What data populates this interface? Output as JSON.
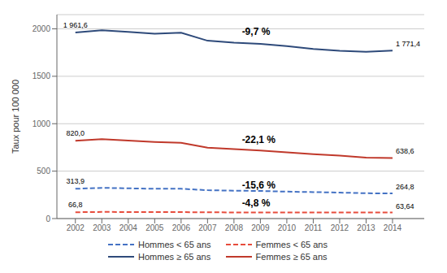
{
  "chart_data": {
    "type": "line",
    "x": [
      2002,
      2003,
      2004,
      2005,
      2006,
      2007,
      2008,
      2009,
      2010,
      2011,
      2012,
      2013,
      2014
    ],
    "xlim": [
      2001.3,
      2015.2
    ],
    "xticks": [
      2002,
      2003,
      2004,
      2005,
      2006,
      2007,
      2008,
      2009,
      2010,
      2011,
      2012,
      2013,
      2014
    ],
    "ylabel": "Taux pour 100 000",
    "ylim": [
      0,
      2150
    ],
    "yticks": [
      0,
      500,
      1000,
      1500,
      2000
    ],
    "grid": true,
    "legend": "bottom",
    "series": [
      {
        "name": "Hommes ≥ 65 ans",
        "color": "#2E4A7A",
        "line_style": "solid",
        "values": [
          1961.6,
          1985,
          1968,
          1948,
          1960,
          1875,
          1855,
          1842,
          1818,
          1788,
          1768,
          1758,
          1771.4
        ],
        "value_labels": [
          "1 961,6",
          null,
          null,
          null,
          null,
          null,
          null,
          null,
          null,
          null,
          null,
          null,
          "1 771,4"
        ]
      },
      {
        "name": "Femmes ≥ 65 ans",
        "color": "#C0392B",
        "line_style": "solid",
        "values": [
          820.0,
          838,
          822,
          808,
          798,
          748,
          732,
          718,
          698,
          678,
          663,
          643,
          638.6
        ],
        "value_labels": [
          "820,0",
          null,
          null,
          null,
          null,
          null,
          null,
          null,
          null,
          null,
          null,
          null,
          "638,6"
        ]
      },
      {
        "name": "Hommes < 65 ans",
        "color": "#4472C4",
        "line_style": "dashed",
        "values": [
          313.9,
          324,
          319,
          314,
          314,
          299,
          294,
          291,
          284,
          279,
          274,
          267,
          264.8
        ],
        "value_labels": [
          "313,9",
          null,
          null,
          null,
          null,
          null,
          null,
          null,
          null,
          null,
          null,
          null,
          "264,8"
        ]
      },
      {
        "name": "Femmes < 65 ans",
        "color": "#E74C3C",
        "line_style": "dashed",
        "values": [
          66.8,
          70,
          69,
          68,
          68,
          66,
          65,
          65,
          65,
          64,
          64,
          64,
          63.64
        ],
        "value_labels": [
          "66,8",
          null,
          null,
          null,
          null,
          null,
          null,
          null,
          null,
          null,
          null,
          null,
          "63,64"
        ]
      }
    ],
    "annotations": [
      {
        "text": "-9,7 %",
        "x": 2008.3,
        "y": 1960
      },
      {
        "text": "-22,1 %",
        "x": 2008.3,
        "y": 820
      },
      {
        "text": "-15,6 %",
        "x": 2008.3,
        "y": 340
      },
      {
        "text": "-4,8 %",
        "x": 2008.3,
        "y": 155
      }
    ]
  }
}
